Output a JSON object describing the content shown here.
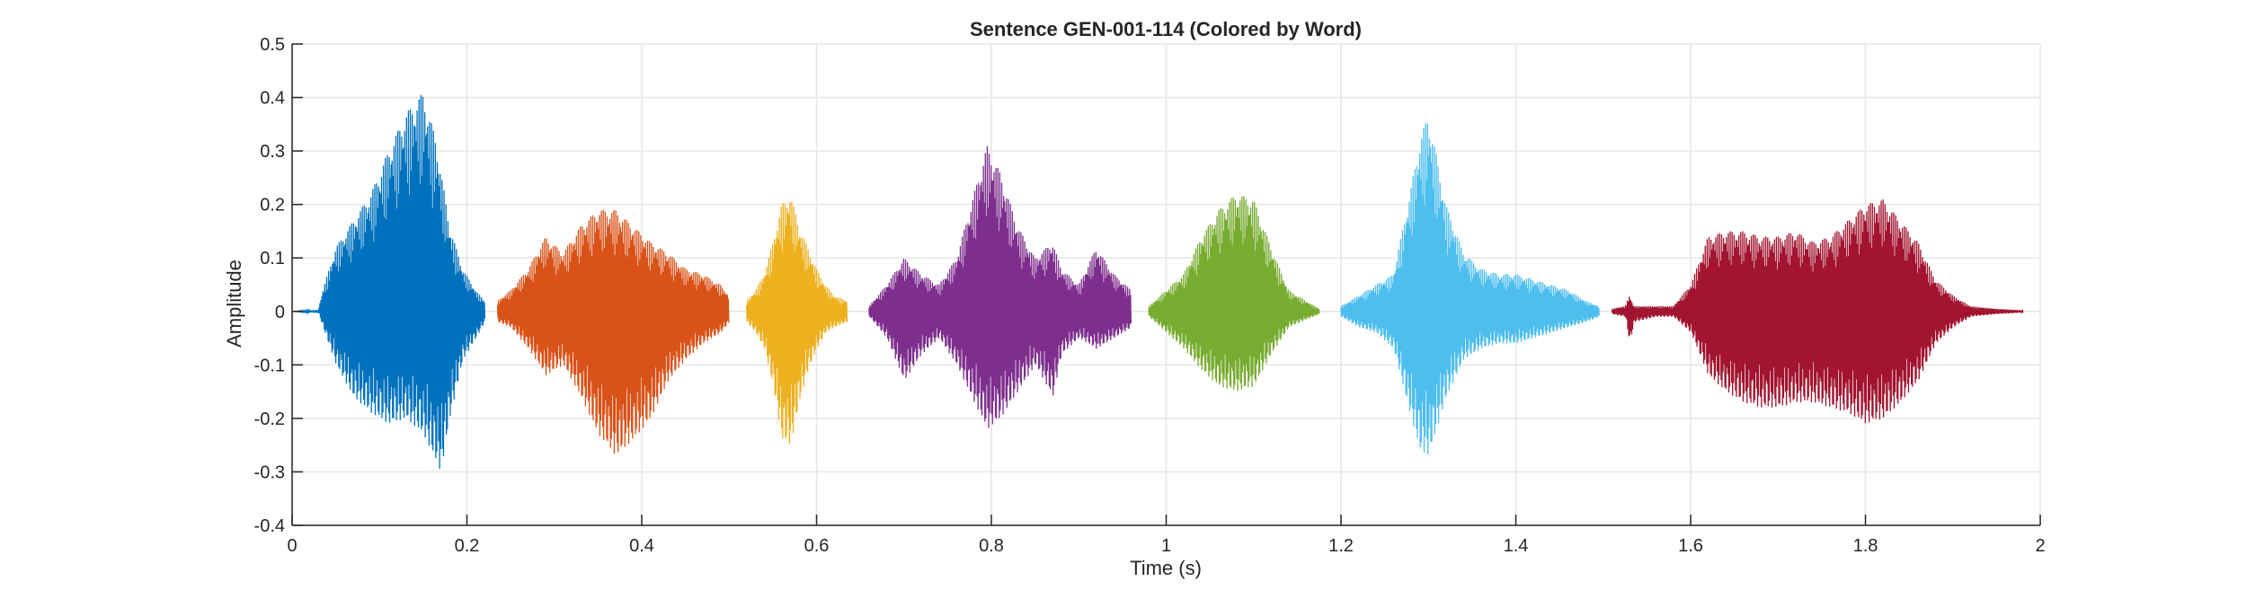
{
  "chart_data": {
    "type": "line",
    "title": "Sentence GEN-001-114 (Colored by Word)",
    "xlabel": "Time (s)",
    "ylabel": "Amplitude",
    "xlim": [
      0,
      2
    ],
    "ylim": [
      -0.4,
      0.5
    ],
    "xticks": [
      0,
      0.2,
      0.4,
      0.6,
      0.8,
      1,
      1.2,
      1.4,
      1.6,
      1.8,
      2
    ],
    "xtick_labels": [
      "0",
      "0.2",
      "0.4",
      "0.6",
      "0.8",
      "1",
      "1.2",
      "1.4",
      "1.6",
      "1.8",
      "2"
    ],
    "yticks": [
      -0.4,
      -0.3,
      -0.2,
      -0.1,
      0,
      0.1,
      0.2,
      0.3,
      0.4,
      0.5
    ],
    "ytick_labels": [
      "-0.4",
      "-0.3",
      "-0.2",
      "-0.1",
      "0",
      "0.1",
      "0.2",
      "0.3",
      "0.4",
      "0.5"
    ],
    "grid": true,
    "legend": false,
    "series": [
      {
        "color": "#0072BD",
        "points": [
          [
            0,
            0
          ],
          [
            0.03,
            0.003
          ],
          [
            0.035,
            0.04
          ],
          [
            0.05,
            0.12
          ],
          [
            0.07,
            0.17
          ],
          [
            0.09,
            0.22
          ],
          [
            0.11,
            0.3
          ],
          [
            0.13,
            0.37
          ],
          [
            0.15,
            0.41
          ],
          [
            0.165,
            0.32
          ],
          [
            0.18,
            0.16
          ],
          [
            0.195,
            0.08
          ],
          [
            0.21,
            0.04
          ],
          [
            0.22,
            0.02
          ]
        ],
        "lower": [
          [
            0,
            0
          ],
          [
            0.03,
            -0.003
          ],
          [
            0.035,
            -0.03
          ],
          [
            0.05,
            -0.1
          ],
          [
            0.07,
            -0.16
          ],
          [
            0.09,
            -0.19
          ],
          [
            0.11,
            -0.21
          ],
          [
            0.13,
            -0.2
          ],
          [
            0.15,
            -0.23
          ],
          [
            0.17,
            -0.3
          ],
          [
            0.18,
            -0.2
          ],
          [
            0.195,
            -0.09
          ],
          [
            0.21,
            -0.05
          ],
          [
            0.22,
            -0.02
          ]
        ]
      },
      {
        "color": "#D95319",
        "points": [
          [
            0.235,
            0.02
          ],
          [
            0.25,
            0.04
          ],
          [
            0.27,
            0.08
          ],
          [
            0.29,
            0.14
          ],
          [
            0.31,
            0.11
          ],
          [
            0.33,
            0.16
          ],
          [
            0.35,
            0.19
          ],
          [
            0.37,
            0.19
          ],
          [
            0.39,
            0.16
          ],
          [
            0.41,
            0.13
          ],
          [
            0.43,
            0.11
          ],
          [
            0.45,
            0.08
          ],
          [
            0.47,
            0.07
          ],
          [
            0.49,
            0.05
          ],
          [
            0.5,
            0.03
          ]
        ],
        "lower": [
          [
            0.235,
            -0.02
          ],
          [
            0.25,
            -0.03
          ],
          [
            0.27,
            -0.07
          ],
          [
            0.29,
            -0.12
          ],
          [
            0.31,
            -0.1
          ],
          [
            0.33,
            -0.16
          ],
          [
            0.35,
            -0.23
          ],
          [
            0.37,
            -0.27
          ],
          [
            0.39,
            -0.24
          ],
          [
            0.41,
            -0.2
          ],
          [
            0.43,
            -0.13
          ],
          [
            0.45,
            -0.09
          ],
          [
            0.47,
            -0.06
          ],
          [
            0.49,
            -0.04
          ],
          [
            0.5,
            -0.02
          ]
        ]
      },
      {
        "color": "#EDB120",
        "points": [
          [
            0.52,
            0.02
          ],
          [
            0.53,
            0.04
          ],
          [
            0.54,
            0.07
          ],
          [
            0.55,
            0.13
          ],
          [
            0.56,
            0.2
          ],
          [
            0.57,
            0.22
          ],
          [
            0.58,
            0.16
          ],
          [
            0.59,
            0.12
          ],
          [
            0.6,
            0.08
          ],
          [
            0.61,
            0.05
          ],
          [
            0.62,
            0.03
          ],
          [
            0.635,
            0.02
          ]
        ],
        "lower": [
          [
            0.52,
            -0.02
          ],
          [
            0.53,
            -0.04
          ],
          [
            0.54,
            -0.07
          ],
          [
            0.55,
            -0.14
          ],
          [
            0.56,
            -0.24
          ],
          [
            0.57,
            -0.25
          ],
          [
            0.58,
            -0.17
          ],
          [
            0.59,
            -0.11
          ],
          [
            0.6,
            -0.07
          ],
          [
            0.61,
            -0.04
          ],
          [
            0.62,
            -0.03
          ],
          [
            0.635,
            -0.02
          ]
        ]
      },
      {
        "color": "#7E2F8E",
        "points": [
          [
            0.66,
            0.01
          ],
          [
            0.68,
            0.05
          ],
          [
            0.7,
            0.1
          ],
          [
            0.72,
            0.07
          ],
          [
            0.74,
            0.05
          ],
          [
            0.76,
            0.1
          ],
          [
            0.78,
            0.22
          ],
          [
            0.795,
            0.31
          ],
          [
            0.81,
            0.26
          ],
          [
            0.83,
            0.16
          ],
          [
            0.85,
            0.1
          ],
          [
            0.87,
            0.13
          ],
          [
            0.88,
            0.08
          ],
          [
            0.9,
            0.05
          ],
          [
            0.92,
            0.12
          ],
          [
            0.94,
            0.07
          ],
          [
            0.96,
            0.04
          ]
        ],
        "lower": [
          [
            0.66,
            -0.01
          ],
          [
            0.68,
            -0.05
          ],
          [
            0.7,
            -0.13
          ],
          [
            0.72,
            -0.08
          ],
          [
            0.74,
            -0.05
          ],
          [
            0.76,
            -0.1
          ],
          [
            0.78,
            -0.17
          ],
          [
            0.795,
            -0.22
          ],
          [
            0.81,
            -0.2
          ],
          [
            0.83,
            -0.15
          ],
          [
            0.85,
            -0.1
          ],
          [
            0.87,
            -0.16
          ],
          [
            0.88,
            -0.08
          ],
          [
            0.9,
            -0.05
          ],
          [
            0.92,
            -0.07
          ],
          [
            0.94,
            -0.05
          ],
          [
            0.96,
            -0.03
          ]
        ]
      },
      {
        "color": "#77AC30",
        "points": [
          [
            0.98,
            0.01
          ],
          [
            1.0,
            0.04
          ],
          [
            1.02,
            0.07
          ],
          [
            1.04,
            0.14
          ],
          [
            1.06,
            0.19
          ],
          [
            1.08,
            0.22
          ],
          [
            1.1,
            0.21
          ],
          [
            1.12,
            0.12
          ],
          [
            1.14,
            0.04
          ],
          [
            1.16,
            0.02
          ],
          [
            1.175,
            0.005
          ]
        ],
        "lower": [
          [
            0.98,
            -0.01
          ],
          [
            1.0,
            -0.04
          ],
          [
            1.02,
            -0.07
          ],
          [
            1.04,
            -0.11
          ],
          [
            1.06,
            -0.14
          ],
          [
            1.08,
            -0.15
          ],
          [
            1.1,
            -0.14
          ],
          [
            1.12,
            -0.08
          ],
          [
            1.14,
            -0.03
          ],
          [
            1.16,
            -0.015
          ],
          [
            1.175,
            -0.005
          ]
        ]
      },
      {
        "color": "#4DBEEE",
        "points": [
          [
            1.2,
            0.01
          ],
          [
            1.22,
            0.03
          ],
          [
            1.24,
            0.05
          ],
          [
            1.26,
            0.07
          ],
          [
            1.28,
            0.23
          ],
          [
            1.29,
            0.32
          ],
          [
            1.3,
            0.37
          ],
          [
            1.32,
            0.2
          ],
          [
            1.34,
            0.11
          ],
          [
            1.36,
            0.08
          ],
          [
            1.38,
            0.07
          ],
          [
            1.4,
            0.07
          ],
          [
            1.42,
            0.06
          ],
          [
            1.44,
            0.05
          ],
          [
            1.46,
            0.04
          ],
          [
            1.48,
            0.02
          ],
          [
            1.495,
            0.01
          ]
        ],
        "lower": [
          [
            1.2,
            -0.01
          ],
          [
            1.22,
            -0.03
          ],
          [
            1.24,
            -0.04
          ],
          [
            1.26,
            -0.07
          ],
          [
            1.28,
            -0.2
          ],
          [
            1.29,
            -0.26
          ],
          [
            1.3,
            -0.27
          ],
          [
            1.32,
            -0.16
          ],
          [
            1.34,
            -0.09
          ],
          [
            1.36,
            -0.07
          ],
          [
            1.38,
            -0.06
          ],
          [
            1.4,
            -0.06
          ],
          [
            1.42,
            -0.05
          ],
          [
            1.44,
            -0.04
          ],
          [
            1.46,
            -0.03
          ],
          [
            1.48,
            -0.02
          ],
          [
            1.495,
            -0.01
          ]
        ]
      },
      {
        "color": "#A2142F",
        "points": [
          [
            1.51,
            0.005
          ],
          [
            1.525,
            0.01
          ],
          [
            1.53,
            0.03
          ],
          [
            1.535,
            0.01
          ],
          [
            1.56,
            0.01
          ],
          [
            1.58,
            0.01
          ],
          [
            1.6,
            0.05
          ],
          [
            1.62,
            0.14
          ],
          [
            1.64,
            0.15
          ],
          [
            1.66,
            0.15
          ],
          [
            1.68,
            0.14
          ],
          [
            1.7,
            0.14
          ],
          [
            1.72,
            0.15
          ],
          [
            1.74,
            0.13
          ],
          [
            1.76,
            0.14
          ],
          [
            1.78,
            0.17
          ],
          [
            1.8,
            0.2
          ],
          [
            1.82,
            0.21
          ],
          [
            1.84,
            0.17
          ],
          [
            1.86,
            0.13
          ],
          [
            1.88,
            0.06
          ],
          [
            1.9,
            0.03
          ],
          [
            1.92,
            0.01
          ],
          [
            1.95,
            0.005
          ],
          [
            1.98,
            0.002
          ]
        ],
        "lower": [
          [
            1.51,
            -0.005
          ],
          [
            1.525,
            -0.01
          ],
          [
            1.53,
            -0.06
          ],
          [
            1.535,
            -0.02
          ],
          [
            1.56,
            -0.01
          ],
          [
            1.58,
            -0.01
          ],
          [
            1.6,
            -0.04
          ],
          [
            1.62,
            -0.12
          ],
          [
            1.64,
            -0.15
          ],
          [
            1.66,
            -0.17
          ],
          [
            1.68,
            -0.18
          ],
          [
            1.7,
            -0.18
          ],
          [
            1.72,
            -0.17
          ],
          [
            1.74,
            -0.17
          ],
          [
            1.76,
            -0.18
          ],
          [
            1.78,
            -0.19
          ],
          [
            1.8,
            -0.21
          ],
          [
            1.82,
            -0.2
          ],
          [
            1.84,
            -0.17
          ],
          [
            1.86,
            -0.13
          ],
          [
            1.88,
            -0.06
          ],
          [
            1.9,
            -0.03
          ],
          [
            1.92,
            -0.01
          ],
          [
            1.95,
            -0.005
          ],
          [
            1.98,
            -0.002
          ]
        ]
      }
    ]
  }
}
